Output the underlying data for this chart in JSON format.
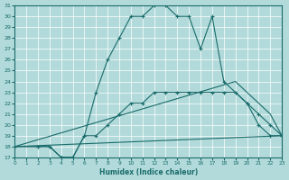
{
  "xlabel": "Humidex (Indice chaleur)",
  "xlim": [
    0,
    23
  ],
  "ylim": [
    17,
    31
  ],
  "xticks": [
    0,
    1,
    2,
    3,
    4,
    5,
    6,
    7,
    8,
    9,
    10,
    11,
    12,
    13,
    14,
    15,
    16,
    17,
    18,
    19,
    20,
    21,
    22,
    23
  ],
  "yticks": [
    17,
    18,
    19,
    20,
    21,
    22,
    23,
    24,
    25,
    26,
    27,
    28,
    29,
    30,
    31
  ],
  "bg_color": "#b2dada",
  "line_color": "#1a6b6b",
  "grid_color": "#ffffff",
  "lines": [
    {
      "x": [
        0,
        2,
        3,
        4,
        5,
        6,
        7,
        8,
        9,
        10,
        11,
        12,
        13,
        14,
        15,
        16,
        17,
        18,
        20,
        21,
        22,
        23
      ],
      "y": [
        18,
        18,
        18,
        17,
        17,
        19,
        23,
        26,
        28,
        30,
        30,
        31,
        31,
        30,
        30,
        27,
        30,
        24,
        22,
        20,
        19,
        19
      ],
      "marker": true
    },
    {
      "x": [
        0,
        2,
        3,
        4,
        5,
        6,
        7,
        8,
        9,
        10,
        11,
        12,
        13,
        14,
        15,
        16,
        17,
        18,
        19,
        20,
        21,
        22,
        23
      ],
      "y": [
        18,
        18,
        18,
        17,
        17,
        19,
        19,
        20,
        21,
        22,
        22,
        23,
        23,
        23,
        23,
        23,
        23,
        23,
        23,
        22,
        21,
        20,
        19
      ],
      "marker": true
    },
    {
      "x": [
        0,
        19,
        20,
        21,
        22,
        23
      ],
      "y": [
        18,
        24,
        23,
        22,
        21,
        19
      ],
      "marker": false
    },
    {
      "x": [
        0,
        23
      ],
      "y": [
        18,
        19
      ],
      "marker": false
    }
  ]
}
